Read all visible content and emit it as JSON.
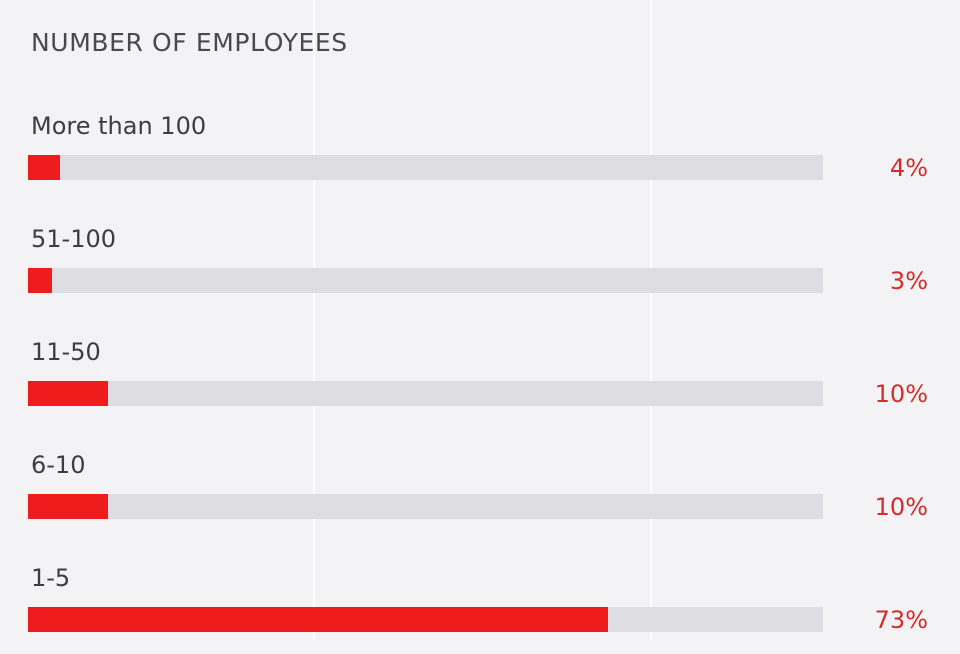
{
  "chart_data": {
    "type": "bar",
    "title": "NUMBER OF EMPLOYEES",
    "categories": [
      "More than 100",
      "51-100",
      "11-50",
      "6-10",
      "1-5"
    ],
    "values": [
      4,
      3,
      10,
      10,
      73
    ],
    "value_labels": [
      "4%",
      "3%",
      "10%",
      "10%",
      "73%"
    ],
    "xlim": [
      0,
      100
    ],
    "orientation": "horizontal",
    "grid": true,
    "legend": "none"
  },
  "colors": {
    "bar": "#ee1c1c",
    "track": "#dedde2",
    "value_label": "#d62b2b",
    "background": "#f3f2f4"
  }
}
